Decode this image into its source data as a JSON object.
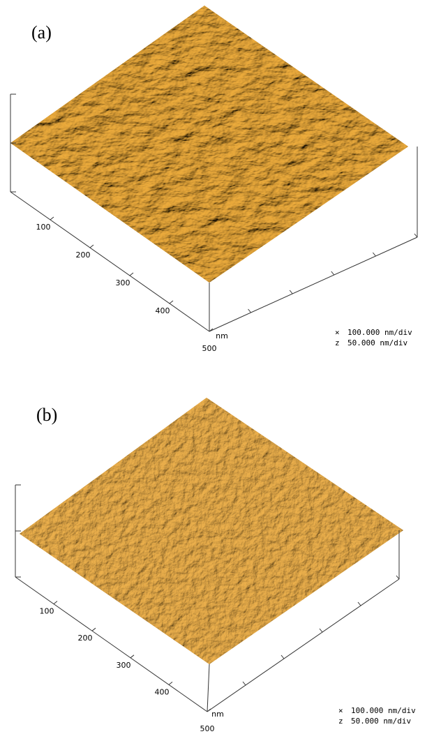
{
  "panels": [
    {
      "label": "(a)",
      "axis_ticks": [
        100,
        200,
        300,
        400,
        500
      ],
      "unit": "nm",
      "scale": [
        {
          "symbol": "×",
          "text": "100.000 nm/div"
        },
        {
          "symbol": "z",
          "text": "50.000 nm/div"
        }
      ]
    },
    {
      "label": "(b)",
      "axis_ticks": [
        100,
        200,
        300,
        400,
        500
      ],
      "unit": "nm",
      "scale": [
        {
          "symbol": "×",
          "text": "100.000 nm/div"
        },
        {
          "symbol": "z",
          "text": "50.000 nm/div"
        }
      ]
    }
  ]
}
